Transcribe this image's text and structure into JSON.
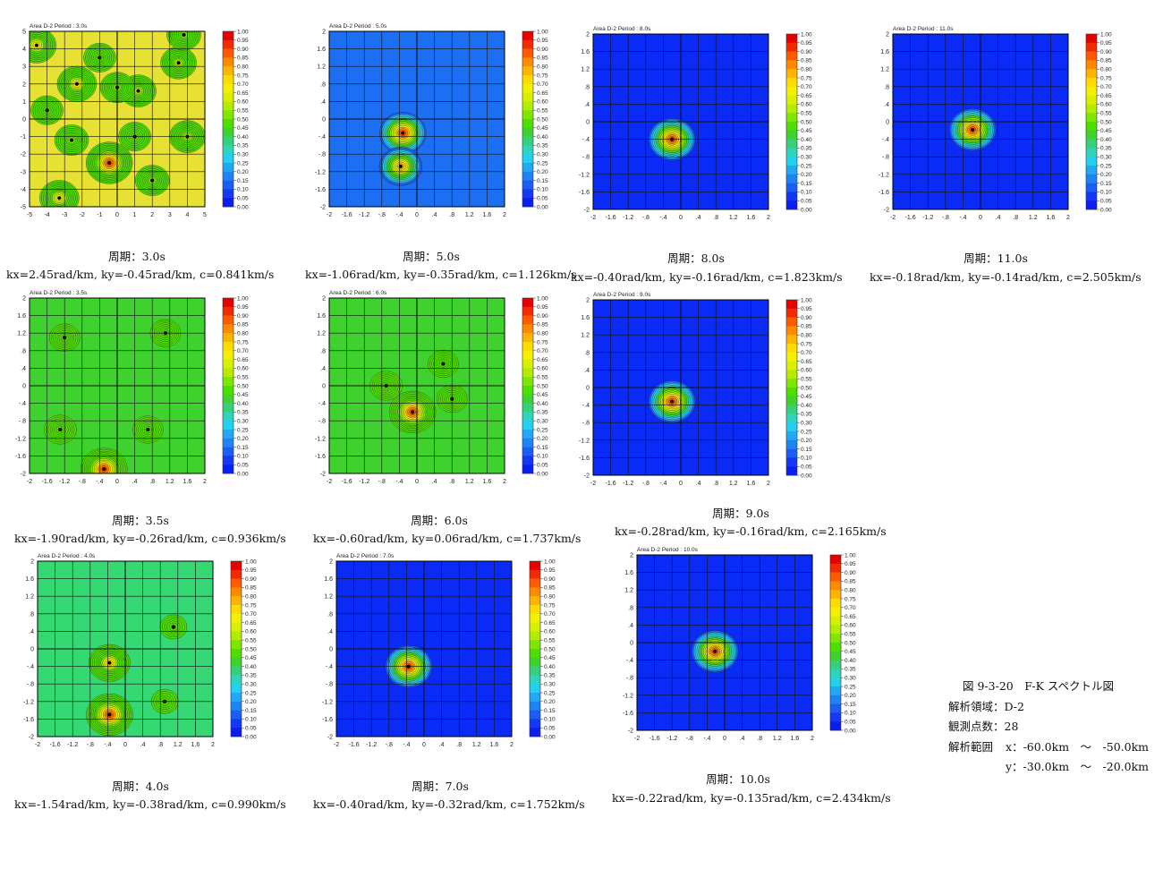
{
  "chart_data": [
    {
      "type": "heatmap",
      "area": "Area D-2",
      "period_label": "Period : 3.0s",
      "caption_period": "周期：3.0s",
      "caption_params": "kx=2.45rad/km, ky=-0.45rad/km, c=0.841km/s",
      "xlim": [
        -5,
        5
      ],
      "ylim": [
        -5,
        5
      ],
      "ticks": [
        "-5",
        "-4",
        "-3",
        "-2",
        "-1",
        "0",
        "1",
        "2",
        "3",
        "4",
        "5"
      ],
      "background": "#e6e133",
      "peaks": [
        {
          "x": -0.45,
          "y": -2.5,
          "value": 1.0
        },
        {
          "x": -2.3,
          "y": 2.0,
          "value": 0.8
        },
        {
          "x": -4.6,
          "y": 4.2,
          "value": 0.8
        },
        {
          "x": -3.3,
          "y": -4.5,
          "value": 0.8
        },
        {
          "x": 1.2,
          "y": 1.6,
          "value": 0.7
        },
        {
          "x": 3.5,
          "y": 3.2,
          "value": 0.7
        },
        {
          "x": 4.0,
          "y": -1.0,
          "value": 0.7
        },
        {
          "x": -2.6,
          "y": -1.2,
          "value": 0.65
        },
        {
          "x": 0.0,
          "y": 1.8,
          "value": 0.65
        },
        {
          "x": 2.0,
          "y": -3.5,
          "value": 0.65
        },
        {
          "x": -1.0,
          "y": 3.5,
          "value": 0.6
        },
        {
          "x": 3.8,
          "y": 4.8,
          "value": 0.65
        },
        {
          "x": 1.0,
          "y": -1.0,
          "value": 0.6
        },
        {
          "x": -4.0,
          "y": 0.5,
          "value": 0.6
        }
      ]
    },
    {
      "type": "heatmap",
      "area": "Area D-2",
      "period_label": "Period : 5.0s",
      "caption_period": "周期：5.0s",
      "caption_params": "kx=-1.06rad/km, ky=-0.35rad/km, c=1.126km/s",
      "xlim": [
        -2,
        2
      ],
      "ylim": [
        -2,
        2
      ],
      "ticks": [
        "-2",
        "-1.6",
        "-1.2",
        "-.8",
        "-.4",
        "0",
        ".4",
        ".8",
        "1.2",
        "1.6",
        "2"
      ],
      "background": "#1c6ff2",
      "peaks": [
        {
          "x": -0.32,
          "y": -0.32,
          "value": 1.0
        },
        {
          "x": -0.37,
          "y": -1.08,
          "value": 0.9
        }
      ]
    },
    {
      "type": "heatmap",
      "area": "Area D-2",
      "period_label": "Period : 8.0s",
      "caption_period": "周期：8.0s",
      "caption_params": "kx=-0.40rad/km, ky=-0.16rad/km, c=1.823km/s",
      "xlim": [
        -2,
        2
      ],
      "ylim": [
        -2,
        2
      ],
      "ticks": [
        "-2",
        "-1.6",
        "-1.2",
        "-.8",
        "-.4",
        "0",
        ".4",
        ".8",
        "1.2",
        "1.6",
        "2"
      ],
      "background": "#0a2bf5",
      "peaks": [
        {
          "x": -0.2,
          "y": -0.4,
          "value": 1.0
        }
      ]
    },
    {
      "type": "heatmap",
      "area": "Area D-2",
      "period_label": "Period : 11.0s",
      "caption_period": "周期：11.0s",
      "caption_params": "kx=-0.18rad/km, ky=-0.14rad/km, c=2.505km/s",
      "xlim": [
        -2,
        2
      ],
      "ylim": [
        -2,
        2
      ],
      "ticks": [
        "-2",
        "-1.6",
        "-1.2",
        "-.8",
        "-.4",
        "0",
        ".4",
        ".8",
        "1.2",
        "1.6",
        "2"
      ],
      "background": "#0a2bf5",
      "peaks": [
        {
          "x": -0.18,
          "y": -0.18,
          "value": 1.0
        }
      ]
    },
    {
      "type": "heatmap",
      "area": "Area D-2",
      "period_label": "Period : 3.5s",
      "caption_period": "周期：3.5s",
      "caption_params": "kx=-1.90rad/km, ky=-0.26rad/km, c=0.936km/s",
      "xlim": [
        -2,
        2
      ],
      "ylim": [
        -2,
        2
      ],
      "ticks": [
        "-2",
        "-1.6",
        "-1.2",
        "-.8",
        "-.4",
        "0",
        ".4",
        ".8",
        "1.2",
        "1.6",
        "2"
      ],
      "background": "#3fd22f",
      "peaks": [
        {
          "x": -0.3,
          "y": -1.9,
          "value": 1.0
        },
        {
          "x": -1.3,
          "y": -1.0,
          "value": 0.6
        },
        {
          "x": -1.2,
          "y": 1.1,
          "value": 0.55
        },
        {
          "x": 1.1,
          "y": 1.2,
          "value": 0.55
        },
        {
          "x": 0.7,
          "y": -1.0,
          "value": 0.55
        }
      ]
    },
    {
      "type": "heatmap",
      "area": "Area D-2",
      "period_label": "Period : 6.0s",
      "caption_period": "周期：6.0s",
      "caption_params": "kx=-0.60rad/km, ky=0.06rad/km, c=1.737km/s",
      "xlim": [
        -2,
        2
      ],
      "ylim": [
        -2,
        2
      ],
      "ticks": [
        "-2",
        "-1.6",
        "-1.2",
        "-.8",
        "-.4",
        "0",
        ".4",
        ".8",
        "1.2",
        "1.6",
        "2"
      ],
      "background": "#3fd22f",
      "peaks": [
        {
          "x": -0.1,
          "y": -0.6,
          "value": 1.0
        },
        {
          "x": -0.7,
          "y": 0.0,
          "value": 0.6
        },
        {
          "x": 0.8,
          "y": -0.3,
          "value": 0.55
        },
        {
          "x": 0.6,
          "y": 0.5,
          "value": 0.55
        }
      ]
    },
    {
      "type": "heatmap",
      "area": "Area D-2",
      "period_label": "Period : 9.0s",
      "caption_period": "周期：9.0s",
      "caption_params": "kx=-0.28rad/km, ky=-0.16rad/km, c=2.165km/s",
      "xlim": [
        -2,
        2
      ],
      "ylim": [
        -2,
        2
      ],
      "ticks": [
        "-2",
        "-1.6",
        "-1.2",
        "-.8",
        "-.4",
        "0",
        ".4",
        ".8",
        "1.2",
        "1.6",
        "2"
      ],
      "background": "#0a2bf5",
      "peaks": [
        {
          "x": -0.2,
          "y": -0.32,
          "value": 1.0
        }
      ]
    },
    {
      "type": "heatmap",
      "area": "Area D-2",
      "period_label": "Period : 4.0s",
      "caption_period": "周期：4.0s",
      "caption_params": "kx=-1.54rad/km, ky=-0.38rad/km, c=0.990km/s",
      "xlim": [
        -2,
        2
      ],
      "ylim": [
        -2,
        2
      ],
      "ticks": [
        "-2",
        "-1.6",
        "-1.2",
        "-.8",
        "-.4",
        "0",
        ".4",
        ".8",
        "1.2",
        "1.6",
        "2"
      ],
      "background": "#35d872",
      "peaks": [
        {
          "x": -0.36,
          "y": -1.5,
          "value": 1.0
        },
        {
          "x": -0.36,
          "y": -0.32,
          "value": 0.85
        },
        {
          "x": 1.1,
          "y": 0.5,
          "value": 0.45
        },
        {
          "x": 0.9,
          "y": -1.2,
          "value": 0.45
        }
      ]
    },
    {
      "type": "heatmap",
      "area": "Area D-2",
      "period_label": "Period : 7.0s",
      "caption_period": "周期：7.0s",
      "caption_params": "kx=-0.40rad/km, ky=-0.32rad/km, c=1.752km/s",
      "xlim": [
        -2,
        2
      ],
      "ylim": [
        -2,
        2
      ],
      "ticks": [
        "-2",
        "-1.6",
        "-1.2",
        "-.8",
        "-.4",
        "0",
        ".4",
        ".8",
        "1.2",
        "1.6",
        "2"
      ],
      "background": "#0a2bf5",
      "peaks": [
        {
          "x": -0.35,
          "y": -0.4,
          "value": 1.0
        }
      ]
    },
    {
      "type": "heatmap",
      "area": "Area D-2",
      "period_label": "Period : 10.0s",
      "caption_period": "周期：10.0s",
      "caption_params": "kx=-0.22rad/km, ky=-0.135rad/km, c=2.434km/s",
      "xlim": [
        -2,
        2
      ],
      "ylim": [
        -2,
        2
      ],
      "ticks": [
        "-2",
        "-1.6",
        "-1.2",
        "-.8",
        "-.4",
        "0",
        ".4",
        ".8",
        "1.2",
        "1.6",
        "2"
      ],
      "background": "#0a2bf5",
      "peaks": [
        {
          "x": -0.22,
          "y": -0.2,
          "value": 1.0
        }
      ]
    }
  ],
  "colorbar": {
    "labels": [
      "1.00",
      "0.95",
      "0.90",
      "0.85",
      "0.80",
      "0.75",
      "0.70",
      "0.65",
      "0.60",
      "0.55",
      "0.50",
      "0.45",
      "0.40",
      "0.35",
      "0.30",
      "0.25",
      "0.20",
      "0.15",
      "0.10",
      "0.05",
      "0.00"
    ],
    "colors": [
      "#e60000",
      "#f22a00",
      "#ff5a00",
      "#ff8a00",
      "#ffb400",
      "#ffdc00",
      "#f5f000",
      "#d8f000",
      "#b4ec00",
      "#7ee600",
      "#4ede00",
      "#3fd22f",
      "#37d07a",
      "#2fd4bc",
      "#22d0f0",
      "#22a8f5",
      "#1c84f5",
      "#1c5ef5",
      "#1438f5",
      "#0a1ef0"
    ]
  },
  "info": {
    "figure_title": "図 9-3-20　F-K スペクトル図",
    "area_line": "解析領域：D-2",
    "stations_line": "観測点数：28",
    "range_label": "解析範囲",
    "range_x": "x：-60.0km　～　-50.0km",
    "range_y": "y：-30.0km　～　-20.0km"
  }
}
